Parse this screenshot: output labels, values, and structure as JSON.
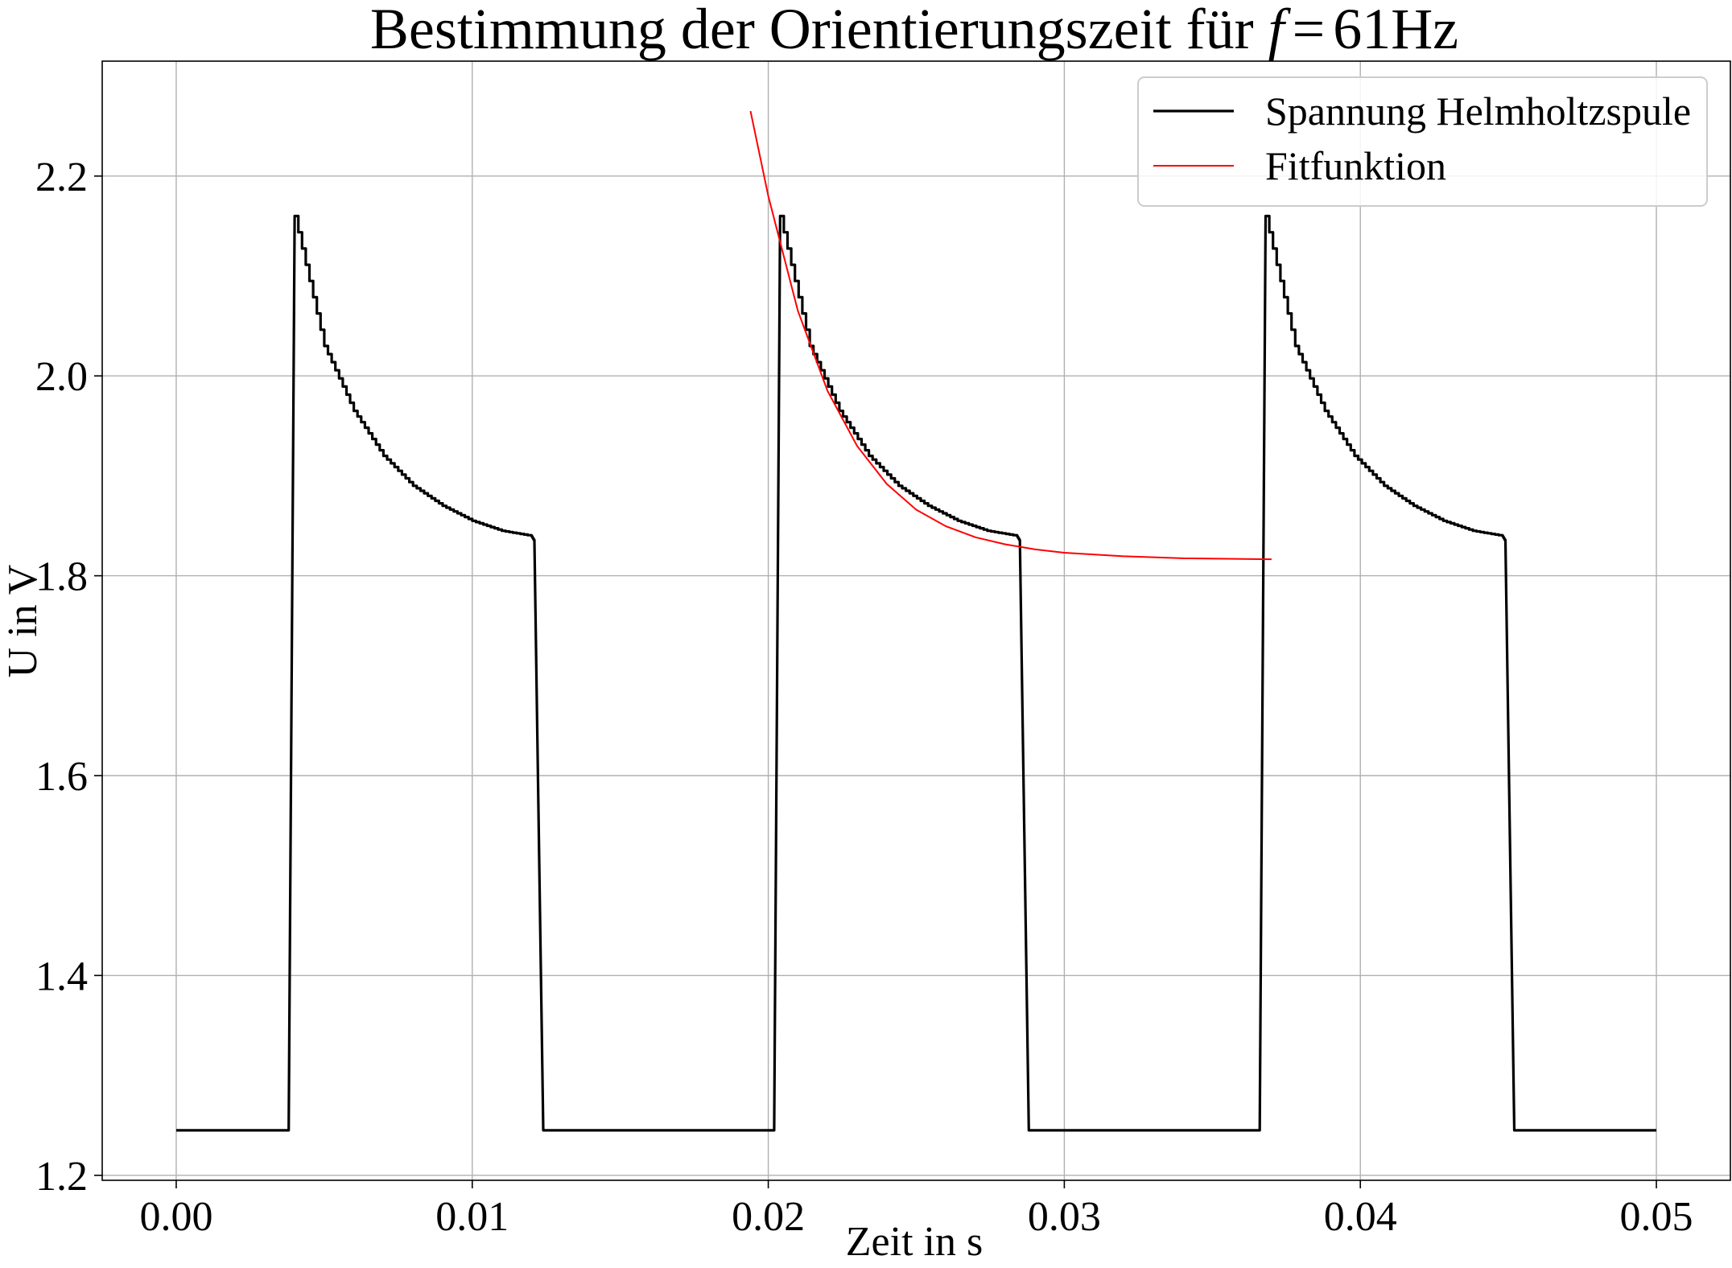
{
  "chart_data": {
    "type": "line",
    "title": "Bestimmung der Orientierungszeit für f = 61Hz",
    "title_parts": {
      "prefix": "Bestimmung der Orientierungszeit für ",
      "var": "f",
      "eq": "=",
      "value": "61Hz"
    },
    "xlabel": "Zeit in s",
    "ylabel": "U in V",
    "xlim": [
      -0.0025,
      0.0525
    ],
    "ylim": [
      1.195,
      2.315
    ],
    "grid": true,
    "legend_position": "top-right",
    "x_ticks": [
      {
        "value": 0.0,
        "label": "0.00"
      },
      {
        "value": 0.01,
        "label": "0.01"
      },
      {
        "value": 0.02,
        "label": "0.02"
      },
      {
        "value": 0.03,
        "label": "0.03"
      },
      {
        "value": 0.04,
        "label": "0.04"
      },
      {
        "value": 0.05,
        "label": "0.05"
      }
    ],
    "y_ticks": [
      {
        "value": 1.2,
        "label": "1.2"
      },
      {
        "value": 1.4,
        "label": "1.4"
      },
      {
        "value": 1.6,
        "label": "1.6"
      },
      {
        "value": 1.8,
        "label": "1.8"
      },
      {
        "value": 2.0,
        "label": "2.0"
      },
      {
        "value": 2.2,
        "label": "2.2"
      }
    ],
    "series": [
      {
        "name": "Spannung Helmholtzspule",
        "color": "#000000",
        "style": "square-pulse",
        "x": [
          0.0,
          0.0038,
          0.004,
          0.005,
          0.006,
          0.007,
          0.008,
          0.009,
          0.01,
          0.011,
          0.012,
          0.0121,
          0.0124,
          0.0202,
          0.0204,
          0.0214,
          0.0224,
          0.0234,
          0.0244,
          0.0254,
          0.0264,
          0.0274,
          0.0284,
          0.0285,
          0.0288,
          0.0366,
          0.0368,
          0.0378,
          0.0388,
          0.0398,
          0.0408,
          0.0418,
          0.0428,
          0.0438,
          0.0448,
          0.0449,
          0.0452,
          0.05
        ],
        "y": [
          1.245,
          1.245,
          2.16,
          2.03,
          1.965,
          1.92,
          1.89,
          1.87,
          1.855,
          1.845,
          1.84,
          1.835,
          1.245,
          1.245,
          2.16,
          2.03,
          1.965,
          1.92,
          1.89,
          1.87,
          1.855,
          1.845,
          1.84,
          1.835,
          1.245,
          1.245,
          2.16,
          2.03,
          1.965,
          1.92,
          1.89,
          1.87,
          1.855,
          1.845,
          1.84,
          1.835,
          1.245,
          1.245
        ]
      },
      {
        "name": "Fitfunktion",
        "color": "#ff0000",
        "style": "exponential-fit",
        "x": [
          0.0194,
          0.02,
          0.021,
          0.022,
          0.023,
          0.024,
          0.025,
          0.026,
          0.027,
          0.028,
          0.029,
          0.03,
          0.032,
          0.034,
          0.037
        ],
        "y": [
          2.265,
          2.18,
          2.065,
          1.985,
          1.93,
          1.892,
          1.866,
          1.8495,
          1.8385,
          1.8315,
          1.8265,
          1.823,
          1.8195,
          1.8175,
          1.8165
        ]
      }
    ]
  }
}
